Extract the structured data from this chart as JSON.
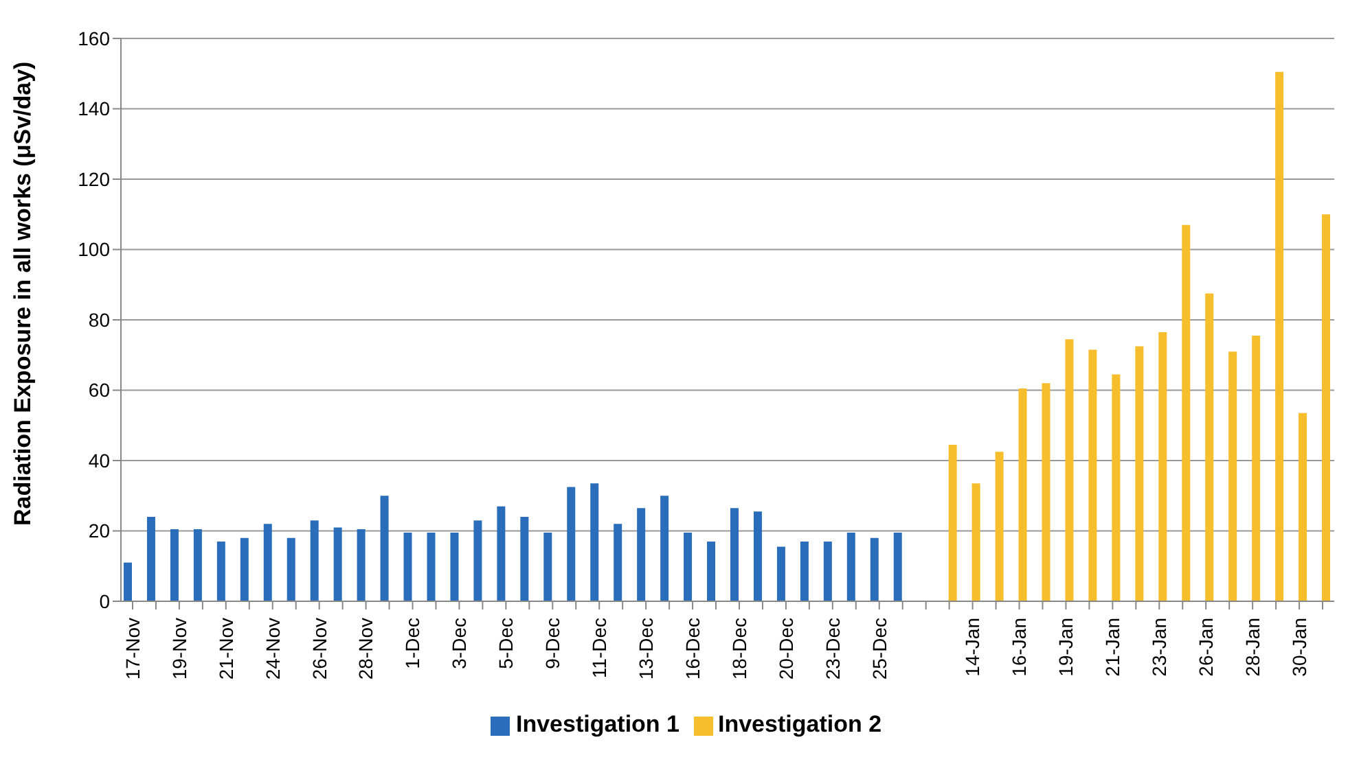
{
  "chart_data": {
    "type": "bar",
    "ylabel": "Radiation Exposure in  all works (μSv/day)",
    "categories": [
      "17-Nov",
      null,
      "19-Nov",
      null,
      "21-Nov",
      null,
      "24-Nov",
      null,
      "26-Nov",
      null,
      "28-Nov",
      null,
      "1-Dec",
      null,
      "3-Dec",
      null,
      "5-Dec",
      null,
      "9-Dec",
      null,
      "11-Dec",
      null,
      "13-Dec",
      null,
      "16-Dec",
      null,
      "18-Dec",
      null,
      "20-Dec",
      null,
      "23-Dec",
      null,
      "25-Dec",
      null,
      null,
      null,
      "14-Jan",
      null,
      "16-Jan",
      null,
      "19-Jan",
      null,
      "21-Jan",
      null,
      "23-Jan",
      null,
      "26-Jan",
      null,
      "28-Jan",
      null,
      "30-Jan",
      null
    ],
    "series": [
      {
        "name": "Investigation 1",
        "color": "#2a6ebb",
        "values": [
          11,
          24,
          20.5,
          20.5,
          17,
          18,
          22,
          18,
          23,
          21,
          20.5,
          30,
          19.5,
          19.5,
          19.5,
          23,
          27,
          24,
          19.5,
          32.5,
          33.5,
          22,
          26.5,
          30,
          19.5,
          17,
          26.5,
          25.5,
          15.5,
          17,
          17,
          19.5,
          18,
          19.5,
          null,
          null,
          null,
          null,
          null,
          null,
          null,
          null,
          null,
          null,
          null,
          null,
          null,
          null,
          null,
          null,
          null,
          null
        ]
      },
      {
        "name": "Investigation 2",
        "color": "#f6bd2c",
        "values": [
          null,
          null,
          null,
          null,
          null,
          null,
          null,
          null,
          null,
          null,
          null,
          null,
          null,
          null,
          null,
          null,
          null,
          null,
          null,
          null,
          null,
          null,
          null,
          null,
          null,
          null,
          null,
          null,
          null,
          null,
          null,
          null,
          null,
          null,
          null,
          44.5,
          33.5,
          42.5,
          60.5,
          62,
          74.5,
          71.5,
          64.5,
          72.5,
          76.5,
          107,
          87.5,
          71,
          75.5,
          150.5,
          53.5,
          110
        ]
      }
    ],
    "ylim": [
      0,
      160
    ],
    "yticks": [
      0,
      20,
      40,
      60,
      80,
      100,
      120,
      140,
      160
    ],
    "grid": "y",
    "legend": "bottom"
  }
}
